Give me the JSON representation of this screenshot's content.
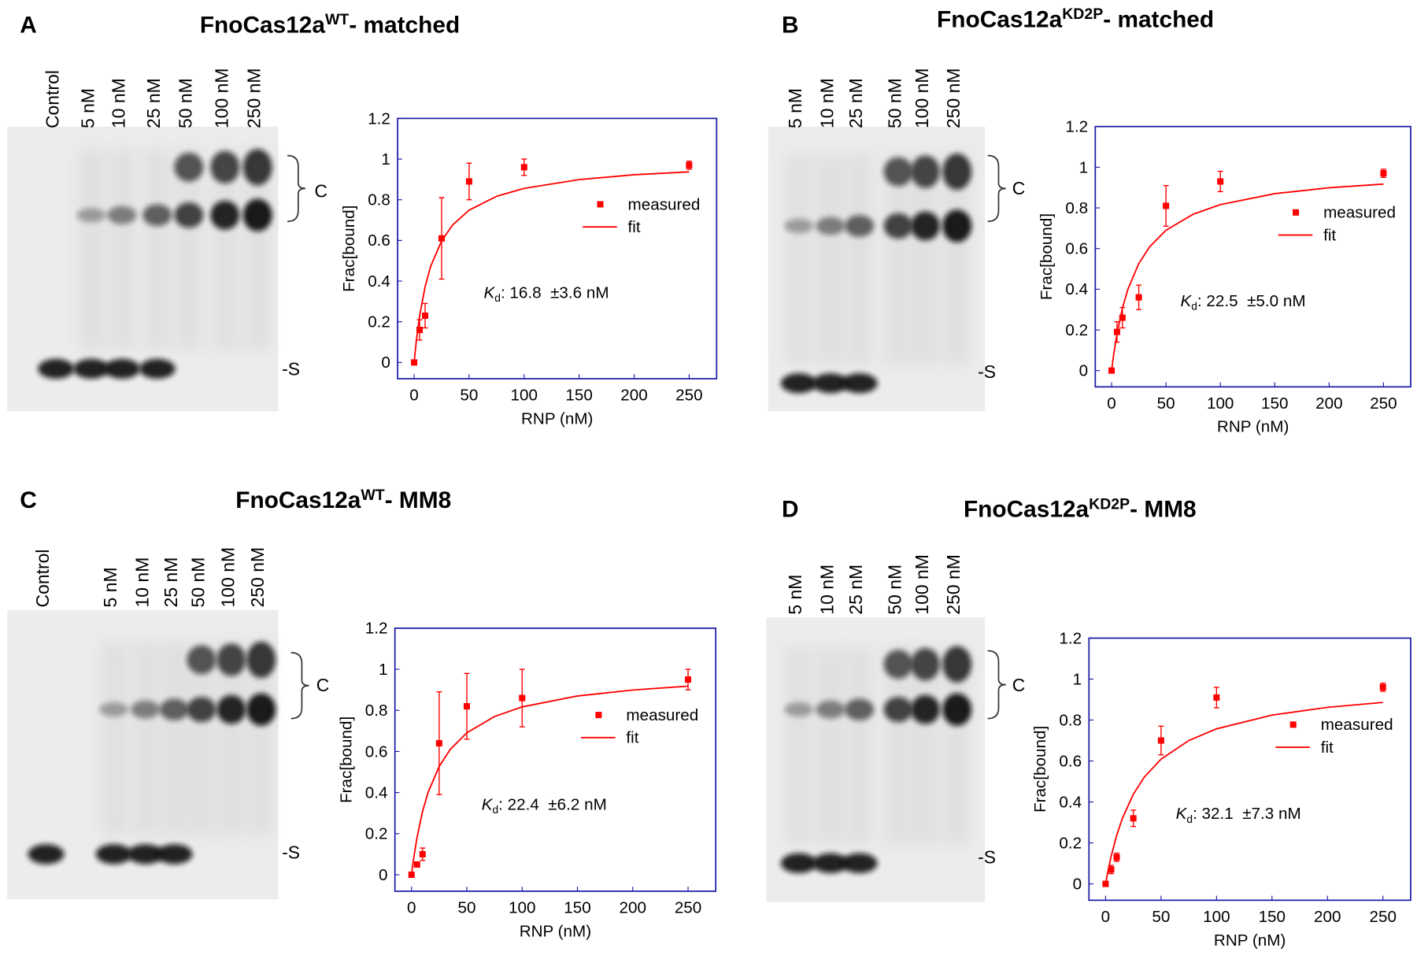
{
  "panels": [
    {
      "label": "A",
      "title": {
        "main": "FnoCas12a",
        "sup": "WT",
        "rest": "- matched"
      },
      "lanes": [
        "Control",
        "5 nM",
        "10 nM",
        "25 nM",
        "50 nM",
        "100 nM",
        "250 nM"
      ],
      "band_labels": [
        "C",
        "-S"
      ]
    },
    {
      "label": "B",
      "title": {
        "main": "FnoCas12a",
        "sup": "KD2P",
        "rest": "- matched"
      },
      "lanes": [
        "5 nM",
        "10 nM",
        "25 nM",
        "50 nM",
        "100 nM",
        "250 nM"
      ],
      "band_labels": [
        "C",
        "-S"
      ]
    },
    {
      "label": "C",
      "title": {
        "main": "FnoCas12a",
        "sup": "WT",
        "rest": "- MM8"
      },
      "lanes": [
        "Control",
        "5 nM",
        "10 nM",
        "25 nM",
        "50 nM",
        "100 nM",
        "250 nM"
      ],
      "band_labels": [
        "C",
        "-S"
      ]
    },
    {
      "label": "D",
      "title": {
        "main": "FnoCas12a",
        "sup": "KD2P",
        "rest": "- MM8"
      },
      "lanes": [
        "5 nM",
        "10 nM",
        "25 nM",
        "50 nM",
        "100 nM",
        "250 nM"
      ],
      "band_labels": [
        "C",
        "-S"
      ]
    }
  ],
  "chart_data": [
    {
      "type": "scatter",
      "xlabel": "RNP (nM)",
      "ylabel": "Frac[bound]",
      "xlim": [
        -15,
        275
      ],
      "ylim": [
        -0.08,
        1.2
      ],
      "xticks": [
        0,
        50,
        100,
        150,
        200,
        250
      ],
      "yticks": [
        0,
        0.2,
        0.4,
        0.6,
        0.8,
        1,
        1.2
      ],
      "legend": "center right",
      "annotation": {
        "symbol": "K",
        "subscript": "d",
        "text": ": 16.8  ±3.6 nM"
      },
      "series": [
        {
          "name": "measured",
          "color": "#ff0000",
          "x": [
            0,
            5,
            10,
            25,
            50,
            100,
            250
          ],
          "values": [
            0,
            0.16,
            0.23,
            0.61,
            0.89,
            0.96,
            0.97
          ],
          "errors": [
            0.01,
            0.05,
            0.06,
            0.2,
            0.09,
            0.04,
            0.02
          ]
        },
        {
          "name": "fit",
          "color": "#ff0000",
          "x": [
            0,
            2,
            5,
            10,
            15,
            25,
            35,
            50,
            75,
            100,
            150,
            200,
            250
          ],
          "values": [
            0,
            0.106,
            0.229,
            0.373,
            0.472,
            0.598,
            0.676,
            0.749,
            0.817,
            0.856,
            0.899,
            0.923,
            0.937
          ]
        }
      ]
    },
    {
      "type": "scatter",
      "xlabel": "RNP (nM)",
      "ylabel": "Frac[bound]",
      "xlim": [
        -15,
        275
      ],
      "ylim": [
        -0.08,
        1.2
      ],
      "xticks": [
        0,
        50,
        100,
        150,
        200,
        250
      ],
      "yticks": [
        0,
        0.2,
        0.4,
        0.6,
        0.8,
        1,
        1.2
      ],
      "legend": "center right",
      "annotation": {
        "symbol": "K",
        "subscript": "d",
        "text": ": 22.5  ±5.0 nM"
      },
      "series": [
        {
          "name": "measured",
          "color": "#ff0000",
          "x": [
            0,
            5,
            10,
            25,
            50,
            100,
            250
          ],
          "values": [
            0,
            0.19,
            0.26,
            0.36,
            0.81,
            0.93,
            0.97
          ],
          "errors": [
            0.01,
            0.05,
            0.05,
            0.06,
            0.1,
            0.05,
            0.02
          ]
        },
        {
          "name": "fit",
          "color": "#ff0000",
          "x": [
            0,
            2,
            5,
            10,
            15,
            25,
            35,
            50,
            75,
            100,
            150,
            200,
            250
          ],
          "values": [
            0,
            0.082,
            0.182,
            0.308,
            0.4,
            0.526,
            0.609,
            0.69,
            0.769,
            0.816,
            0.87,
            0.899,
            0.917
          ]
        }
      ]
    },
    {
      "type": "scatter",
      "xlabel": "RNP (nM)",
      "ylabel": "Frac[bound]",
      "xlim": [
        -15,
        275
      ],
      "ylim": [
        -0.08,
        1.2
      ],
      "xticks": [
        0,
        50,
        100,
        150,
        200,
        250
      ],
      "yticks": [
        0,
        0.2,
        0.4,
        0.6,
        0.8,
        1,
        1.2
      ],
      "legend": "center right",
      "annotation": {
        "symbol": "K",
        "subscript": "d",
        "text": ": 22.4  ±6.2 nM"
      },
      "series": [
        {
          "name": "measured",
          "color": "#ff0000",
          "x": [
            0,
            5,
            10,
            25,
            50,
            100,
            250
          ],
          "values": [
            0,
            0.05,
            0.1,
            0.64,
            0.82,
            0.86,
            0.95
          ],
          "errors": [
            0.01,
            0.01,
            0.03,
            0.25,
            0.16,
            0.14,
            0.05
          ]
        },
        {
          "name": "fit",
          "color": "#ff0000",
          "x": [
            0,
            2,
            5,
            10,
            15,
            25,
            35,
            50,
            75,
            100,
            150,
            200,
            250
          ],
          "values": [
            0,
            0.082,
            0.182,
            0.309,
            0.401,
            0.527,
            0.61,
            0.691,
            0.77,
            0.817,
            0.87,
            0.899,
            0.918
          ]
        }
      ]
    },
    {
      "type": "scatter",
      "xlabel": "RNP (nM)",
      "ylabel": "Frac[bound]",
      "xlim": [
        -15,
        275
      ],
      "ylim": [
        -0.08,
        1.2
      ],
      "xticks": [
        0,
        50,
        100,
        150,
        200,
        250
      ],
      "yticks": [
        0,
        0.2,
        0.4,
        0.6,
        0.8,
        1,
        1.2
      ],
      "legend": "center right",
      "annotation": {
        "symbol": "K",
        "subscript": "d",
        "text": ": 32.1  ±7.3 nM"
      },
      "series": [
        {
          "name": "measured",
          "color": "#ff0000",
          "x": [
            0,
            5,
            10,
            25,
            50,
            100,
            250
          ],
          "values": [
            0,
            0.07,
            0.13,
            0.32,
            0.7,
            0.91,
            0.96
          ],
          "errors": [
            0.01,
            0.02,
            0.02,
            0.04,
            0.07,
            0.05,
            0.02
          ]
        },
        {
          "name": "fit",
          "color": "#ff0000",
          "x": [
            0,
            2,
            5,
            10,
            15,
            25,
            35,
            50,
            75,
            100,
            150,
            200,
            250
          ],
          "values": [
            0,
            0.059,
            0.135,
            0.237,
            0.318,
            0.438,
            0.522,
            0.609,
            0.7,
            0.757,
            0.824,
            0.862,
            0.886
          ]
        }
      ]
    }
  ]
}
